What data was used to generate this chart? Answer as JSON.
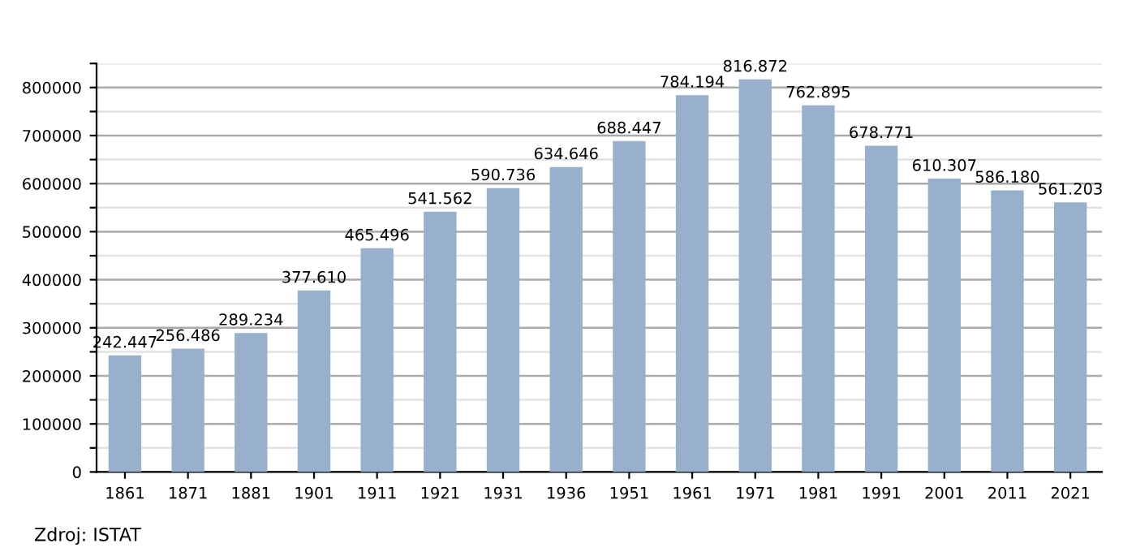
{
  "chart_data": {
    "type": "bar",
    "categories": [
      "1861",
      "1871",
      "1881",
      "1901",
      "1911",
      "1921",
      "1931",
      "1936",
      "1951",
      "1961",
      "1971",
      "1981",
      "1991",
      "2001",
      "2011",
      "2021"
    ],
    "values": [
      242447,
      256486,
      289234,
      377610,
      465496,
      541562,
      590736,
      634646,
      688447,
      784194,
      816872,
      762895,
      678771,
      610307,
      586180,
      561203
    ],
    "value_labels": [
      "242.447",
      "256.486",
      "289.234",
      "377.610",
      "465.496",
      "541.562",
      "590.736",
      "634.646",
      "688.447",
      "784.194",
      "816.872",
      "762.895",
      "678.771",
      "610.307",
      "586.180",
      "561.203"
    ],
    "color": "#98b0cc",
    "ylim": [
      0,
      850000
    ],
    "yticks": [
      0,
      {
        "value": 50000,
        "label": null
      },
      100000,
      {
        "value": 150000,
        "label": null
      },
      200000,
      {
        "value": 250000,
        "label": null
      },
      300000,
      {
        "value": 350000,
        "label": null
      },
      400000,
      {
        "value": 450000,
        "label": null
      },
      500000,
      {
        "value": 550000,
        "label": null
      },
      600000,
      {
        "value": 650000,
        "label": null
      },
      700000,
      {
        "value": 750000,
        "label": null
      },
      800000,
      {
        "value": 850000,
        "label": null
      }
    ],
    "grid": "y",
    "annotations": [
      "Zdroj: ISTAT"
    ]
  }
}
